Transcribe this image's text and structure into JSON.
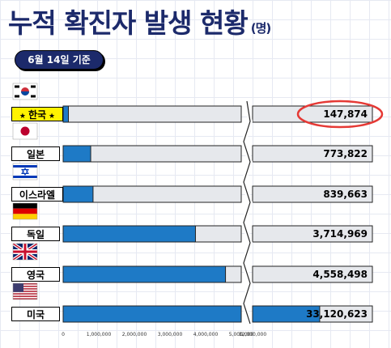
{
  "header": {
    "title": "누적 확진자 발생 현황",
    "unit": "(명)",
    "date": "6월 14일 기준"
  },
  "chart_data": {
    "type": "bar",
    "orientation": "horizontal",
    "axis_break": {
      "from": 5000000,
      "to": 32000000
    },
    "xlim": [
      0,
      5000000
    ],
    "tick_labels": [
      "0",
      "1,000,000",
      "2,000,000",
      "3,000,000",
      "4,000,000",
      "5,000,000",
      "32,000,000"
    ],
    "tick_values": [
      0,
      1000000,
      2000000,
      3000000,
      4000000,
      5000000,
      32000000
    ],
    "categories": [
      "한국",
      "일본",
      "이스라엘",
      "독일",
      "영국",
      "미국"
    ],
    "values": [
      147874,
      773822,
      839663,
      3714969,
      4558498,
      33120623
    ],
    "value_labels": [
      "147,874",
      "773,822",
      "839,663",
      "3,714,969",
      "4,558,498",
      "33,120,623"
    ],
    "highlight": "한국",
    "flags": [
      "korea-flag",
      "japan-flag",
      "israel-flag",
      "germany-flag",
      "uk-flag",
      "usa-flag"
    ],
    "colors": {
      "bar": "#1e7ac6",
      "track": "#e6e8ec",
      "highlight_label": "#fff200",
      "title": "#1c2a6b",
      "circle": "#e53935"
    }
  }
}
